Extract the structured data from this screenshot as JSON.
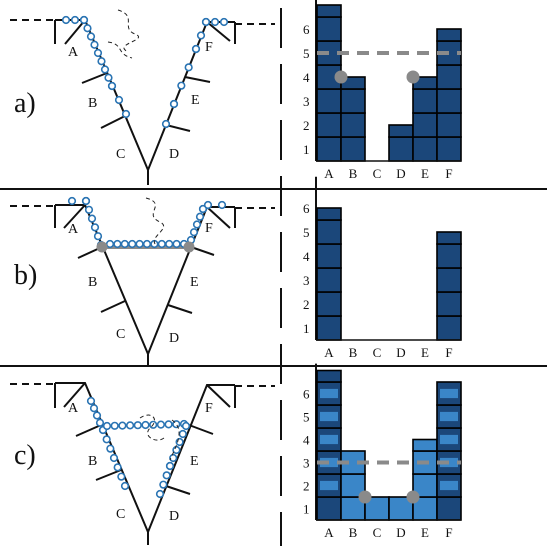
{
  "colors": {
    "dark_bar": "#1b477a",
    "light_bar": "#3a86c8",
    "cell_line": "#000000",
    "bead_stroke": "#2a74b3",
    "marker_gray": "#8a8a8a"
  },
  "panels": [
    {
      "id": "a",
      "label": "a)",
      "segment_labels": [
        "A",
        "B",
        "C",
        "D",
        "E",
        "F"
      ],
      "histogram": {
        "y_ticks": [
          "1",
          "2",
          "3",
          "4",
          "5",
          "6"
        ],
        "x_labels": [
          "A",
          "B",
          "C",
          "D",
          "E",
          "F"
        ],
        "values": [
          6.5,
          3.5,
          0,
          1.5,
          3.5,
          5.5
        ],
        "tone": [
          "dark",
          "dark",
          "dark",
          "dark",
          "dark",
          "dark"
        ],
        "mean_line": 4.5,
        "markers": [
          {
            "category": "B",
            "value": 3.5
          },
          {
            "category": "E",
            "value": 3.5
          }
        ]
      }
    },
    {
      "id": "b",
      "label": "b)",
      "segment_labels": [
        "A",
        "F",
        "B",
        "E",
        "C",
        "D"
      ],
      "histogram": {
        "y_ticks": [
          "1",
          "2",
          "3",
          "4",
          "5",
          "6"
        ],
        "x_labels": [
          "A",
          "B",
          "C",
          "D",
          "E",
          "F"
        ],
        "values": [
          5.5,
          0,
          0,
          0,
          0,
          4.5
        ],
        "tone": [
          "dark",
          "dark",
          "dark",
          "dark",
          "dark",
          "dark"
        ],
        "mean_line": null,
        "markers": []
      }
    },
    {
      "id": "c",
      "label": "c)",
      "segment_labels": [
        "A",
        "F",
        "B",
        "E",
        "C",
        "D"
      ],
      "histogram": {
        "y_ticks": [
          "1",
          "2",
          "3",
          "4",
          "5",
          "6"
        ],
        "x_labels": [
          "A",
          "B",
          "C",
          "D",
          "E",
          "F"
        ],
        "values": [
          6.5,
          3,
          1,
          1,
          3.5,
          6
        ],
        "tone": [
          "mixed",
          "light",
          "light",
          "light",
          "light",
          "mixed"
        ],
        "mean_line": 2.5,
        "markers": [
          {
            "category": "C",
            "value": 1
          },
          {
            "category": "E",
            "value": 1
          }
        ]
      }
    }
  ]
}
